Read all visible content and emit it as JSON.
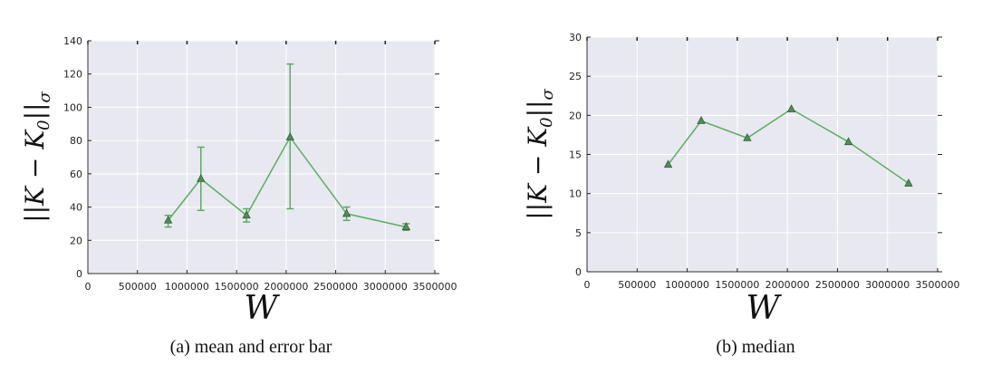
{
  "chart_data": [
    {
      "type": "line",
      "subfigure": "(a)",
      "caption": "mean and error bar",
      "xlabel": "W",
      "ylabel": "||K − K₀||σ",
      "xlim": [
        0,
        3500000
      ],
      "ylim": [
        0,
        140
      ],
      "xticks": [
        0,
        500000,
        1000000,
        1500000,
        2000000,
        2500000,
        3000000,
        3500000
      ],
      "xtick_labels": [
        "0",
        "500000",
        "1000000",
        "1500000",
        "2000000",
        "2500000",
        "3000000",
        "3500000"
      ],
      "yticks": [
        0,
        20,
        40,
        60,
        80,
        100,
        120,
        140
      ],
      "ytick_labels": [
        "0",
        "20",
        "40",
        "60",
        "80",
        "100",
        "120",
        "140"
      ],
      "grid": true,
      "marker": "triangle",
      "color": "#5aae61",
      "background": "#e8e8f0",
      "x": [
        810000,
        1140000,
        1600000,
        2040000,
        2610000,
        3210000
      ],
      "y": [
        32,
        57,
        35,
        82,
        36,
        28
      ],
      "yerr_low": [
        28,
        38,
        31,
        39,
        32,
        26
      ],
      "yerr_high": [
        35,
        76,
        39,
        126,
        40,
        30
      ]
    },
    {
      "type": "line",
      "subfigure": "(b)",
      "caption": "median",
      "xlabel": "W",
      "ylabel": "||K − K₀||σ",
      "xlim": [
        0,
        3500000
      ],
      "ylim": [
        0,
        30
      ],
      "xticks": [
        0,
        500000,
        1000000,
        1500000,
        2000000,
        2500000,
        3000000,
        3500000
      ],
      "xtick_labels": [
        "0",
        "500000",
        "1000000",
        "1500000",
        "2000000",
        "2500000",
        "3000000",
        "3500000"
      ],
      "yticks": [
        0,
        5,
        10,
        15,
        20,
        25,
        30
      ],
      "ytick_labels": [
        "0",
        "5",
        "10",
        "15",
        "20",
        "25",
        "30"
      ],
      "grid": true,
      "marker": "triangle",
      "color": "#5aae61",
      "background": "#e8e8f0",
      "x": [
        810000,
        1140000,
        1600000,
        2040000,
        2610000,
        3210000
      ],
      "y": [
        13.7,
        19.3,
        17.1,
        20.8,
        16.6,
        11.3
      ]
    }
  ]
}
